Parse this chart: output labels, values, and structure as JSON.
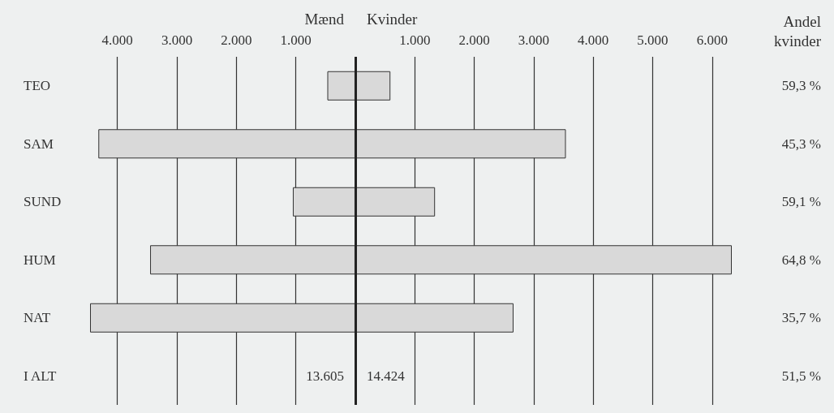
{
  "chart_data": {
    "type": "bar",
    "orientation": "horizontal",
    "stacked": true,
    "categories": [
      "TEO",
      "SAM",
      "SUND",
      "HUM",
      "NAT",
      "I ALT"
    ],
    "series": [
      {
        "name": "Mænd",
        "color": "#d9d9d9",
        "values": [
          -470,
          -4320,
          -1050,
          -3450,
          -4460,
          null
        ],
        "value_labels": [
          null,
          null,
          null,
          null,
          null,
          "13.605"
        ]
      },
      {
        "name": "Kvinder",
        "color": "#d9d9d9",
        "values": [
          590,
          3540,
          1340,
          6330,
          2660,
          null
        ],
        "value_labels": [
          null,
          null,
          null,
          null,
          null,
          "14.424"
        ]
      }
    ],
    "xticks": [
      {
        "value": -4000,
        "label": "4.000"
      },
      {
        "value": -3000,
        "label": "3.000"
      },
      {
        "value": -2000,
        "label": "2.000"
      },
      {
        "value": -1000,
        "label": "1.000"
      },
      {
        "value": 0,
        "label": null
      },
      {
        "value": 1000,
        "label": "1.000"
      },
      {
        "value": 2000,
        "label": "2.000"
      },
      {
        "value": 3000,
        "label": "3.000"
      },
      {
        "value": 4000,
        "label": "4.000"
      },
      {
        "value": 5000,
        "label": "5.000"
      },
      {
        "value": 6000,
        "label": "6.000"
      }
    ],
    "xlim": [
      -4460,
      6330
    ],
    "ref_lines": [
      {
        "axis": "x",
        "value": 0,
        "color": "#222222"
      }
    ],
    "annotations": [
      "Andel kvinder",
      "59,3 %",
      "45,3 %",
      "59,1 %",
      "64,8 %",
      "35,7 %",
      "51,5 %"
    ],
    "grid": "x",
    "legend": false
  }
}
